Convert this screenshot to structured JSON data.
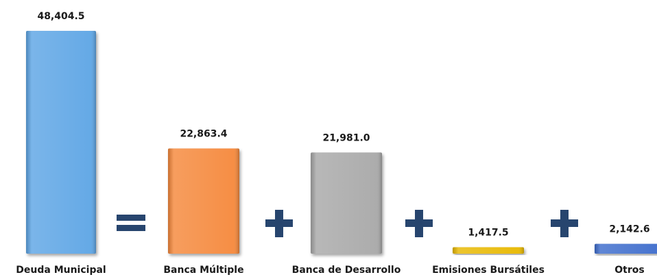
{
  "chart_data": {
    "type": "bar",
    "categories": [
      "Deuda Municipal",
      "Banca Múltiple",
      "Banca de Desarrollo",
      "Emisiones Bursátiles",
      "Otros"
    ],
    "values": [
      48404.5,
      22863.4,
      21981.0,
      1417.5,
      2142.6
    ],
    "value_labels": [
      "48,404.5",
      "22,863.4",
      "21,981.0",
      "1,417.5",
      "2,142.6"
    ],
    "operators": [
      "=",
      "+",
      "+",
      "+"
    ],
    "colors": [
      "#5da5e5",
      "#f5883a",
      "#a8a8a8",
      "#e8b800",
      "#3c6ccc"
    ],
    "operator_color": "#27456e",
    "title": "",
    "xlabel": "",
    "ylabel": "",
    "ylim": [
      0,
      48404.5
    ],
    "grid": false,
    "legend": "none"
  }
}
